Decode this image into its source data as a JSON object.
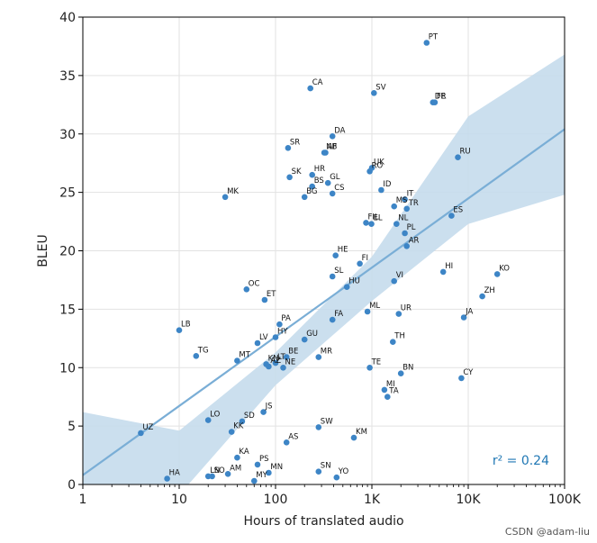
{
  "chart_data": {
    "type": "scatter",
    "xlabel": "Hours of translated audio",
    "ylabel": "BLEU",
    "xscale": "log",
    "xlim": [
      1,
      100000
    ],
    "ylim": [
      0,
      40
    ],
    "grid": true,
    "x_tick_labels": [
      "1",
      "10",
      "100",
      "1K",
      "10K",
      "100K"
    ],
    "x_tick_values": [
      1,
      10,
      100,
      1000,
      10000,
      100000
    ],
    "y_tick_values": [
      0,
      5,
      10,
      15,
      20,
      25,
      30,
      35,
      40
    ],
    "point_color": "#3d85c6",
    "fit": {
      "color": "#7aaed6",
      "band_color": "#c5dbec",
      "line": [
        [
          1,
          0.8
        ],
        [
          100000,
          30.4
        ]
      ],
      "band_upper": [
        [
          1,
          6.2
        ],
        [
          10,
          4.6
        ],
        [
          100,
          11.3
        ],
        [
          1000,
          19.5
        ],
        [
          10000,
          31.5
        ],
        [
          100000,
          36.8
        ]
      ],
      "band_lower": [
        [
          1,
          -4.6
        ],
        [
          10,
          -0.9
        ],
        [
          100,
          8.5
        ],
        [
          1000,
          15.7
        ],
        [
          10000,
          22.3
        ],
        [
          100000,
          24.8
        ]
      ]
    },
    "annotation": "r² = 0.24",
    "annotation_color": "#1f77b4",
    "points": [
      {
        "label": "PT",
        "x": 3700,
        "y": 37.8
      },
      {
        "label": "CA",
        "x": 230,
        "y": 33.9
      },
      {
        "label": "SV",
        "x": 1050,
        "y": 33.5
      },
      {
        "label": "DE",
        "x": 4300,
        "y": 32.7
      },
      {
        "label": "FR",
        "x": 4500,
        "y": 32.7
      },
      {
        "label": "DA",
        "x": 390,
        "y": 29.8
      },
      {
        "label": "SR",
        "x": 135,
        "y": 28.8
      },
      {
        "label": "NB",
        "x": 320,
        "y": 28.4
      },
      {
        "label": "AF",
        "x": 330,
        "y": 28.4
      },
      {
        "label": "RU",
        "x": 7800,
        "y": 28.0
      },
      {
        "label": "RO",
        "x": 950,
        "y": 26.8
      },
      {
        "label": "HR",
        "x": 240,
        "y": 26.5
      },
      {
        "label": "SK",
        "x": 140,
        "y": 26.3
      },
      {
        "label": "UK",
        "x": 1000,
        "y": 27.1
      },
      {
        "label": "BS",
        "x": 240,
        "y": 25.5
      },
      {
        "label": "GL",
        "x": 350,
        "y": 25.8
      },
      {
        "label": "CS",
        "x": 390,
        "y": 24.9
      },
      {
        "label": "ID",
        "x": 1250,
        "y": 25.2
      },
      {
        "label": "MK",
        "x": 30,
        "y": 24.6
      },
      {
        "label": "BG",
        "x": 200,
        "y": 24.6
      },
      {
        "label": "IT",
        "x": 2200,
        "y": 24.4
      },
      {
        "label": "MS",
        "x": 1700,
        "y": 23.8
      },
      {
        "label": "TR",
        "x": 2300,
        "y": 23.6
      },
      {
        "label": "ES",
        "x": 6700,
        "y": 23.0
      },
      {
        "label": "FIL",
        "x": 870,
        "y": 22.4
      },
      {
        "label": "EL",
        "x": 990,
        "y": 22.3
      },
      {
        "label": "NL",
        "x": 1800,
        "y": 22.3
      },
      {
        "label": "PL",
        "x": 2200,
        "y": 21.5
      },
      {
        "label": "AR",
        "x": 2300,
        "y": 20.4
      },
      {
        "label": "HE",
        "x": 420,
        "y": 19.6
      },
      {
        "label": "FI",
        "x": 750,
        "y": 18.9
      },
      {
        "label": "HI",
        "x": 5500,
        "y": 18.2
      },
      {
        "label": "KO",
        "x": 20000,
        "y": 18.0
      },
      {
        "label": "SL",
        "x": 390,
        "y": 17.8
      },
      {
        "label": "VI",
        "x": 1700,
        "y": 17.4
      },
      {
        "label": "HU",
        "x": 550,
        "y": 16.9
      },
      {
        "label": "OC",
        "x": 50,
        "y": 16.7
      },
      {
        "label": "ET",
        "x": 77,
        "y": 15.8
      },
      {
        "label": "ZH",
        "x": 14000,
        "y": 16.1
      },
      {
        "label": "ML",
        "x": 900,
        "y": 14.8
      },
      {
        "label": "UR",
        "x": 1900,
        "y": 14.6
      },
      {
        "label": "JA",
        "x": 9000,
        "y": 14.3
      },
      {
        "label": "PA",
        "x": 110,
        "y": 13.7
      },
      {
        "label": "FA",
        "x": 390,
        "y": 14.1
      },
      {
        "label": "LB",
        "x": 10,
        "y": 13.2
      },
      {
        "label": "HY",
        "x": 100,
        "y": 12.6
      },
      {
        "label": "GU",
        "x": 200,
        "y": 12.4
      },
      {
        "label": "LV",
        "x": 65,
        "y": 12.1
      },
      {
        "label": "TH",
        "x": 1650,
        "y": 12.2
      },
      {
        "label": "TG",
        "x": 15,
        "y": 11.0
      },
      {
        "label": "MR",
        "x": 280,
        "y": 10.9
      },
      {
        "label": "MT",
        "x": 40,
        "y": 10.6
      },
      {
        "label": "BE",
        "x": 130,
        "y": 10.9
      },
      {
        "label": "KN",
        "x": 80,
        "y": 10.3
      },
      {
        "label": "LT",
        "x": 100,
        "y": 10.4
      },
      {
        "label": "AZ",
        "x": 85,
        "y": 10.1
      },
      {
        "label": "NE",
        "x": 120,
        "y": 10.0
      },
      {
        "label": "TE",
        "x": 950,
        "y": 10.0
      },
      {
        "label": "BN",
        "x": 2000,
        "y": 9.5
      },
      {
        "label": "CY",
        "x": 8500,
        "y": 9.1
      },
      {
        "label": "MI",
        "x": 1350,
        "y": 8.1
      },
      {
        "label": "TA",
        "x": 1450,
        "y": 7.5
      },
      {
        "label": "JS",
        "x": 75,
        "y": 6.2
      },
      {
        "label": "LO",
        "x": 20,
        "y": 5.5
      },
      {
        "label": "SD",
        "x": 45,
        "y": 5.4
      },
      {
        "label": "KK",
        "x": 35,
        "y": 4.5
      },
      {
        "label": "UZ",
        "x": 4,
        "y": 4.4
      },
      {
        "label": "SW",
        "x": 280,
        "y": 4.9
      },
      {
        "label": "KM",
        "x": 650,
        "y": 4.0
      },
      {
        "label": "AS",
        "x": 130,
        "y": 3.6
      },
      {
        "label": "KA",
        "x": 40,
        "y": 2.3
      },
      {
        "label": "PS",
        "x": 65,
        "y": 1.7
      },
      {
        "label": "SN",
        "x": 280,
        "y": 1.1
      },
      {
        "label": "MN",
        "x": 85,
        "y": 1.0
      },
      {
        "label": "LN",
        "x": 20,
        "y": 0.7
      },
      {
        "label": "SO",
        "x": 22,
        "y": 0.7
      },
      {
        "label": "AM",
        "x": 32,
        "y": 0.9
      },
      {
        "label": "YO",
        "x": 430,
        "y": 0.6
      },
      {
        "label": "MY",
        "x": 60,
        "y": 0.3
      },
      {
        "label": "HA",
        "x": 7.5,
        "y": 0.5
      }
    ]
  },
  "watermark": "CSDN @adam-liu"
}
